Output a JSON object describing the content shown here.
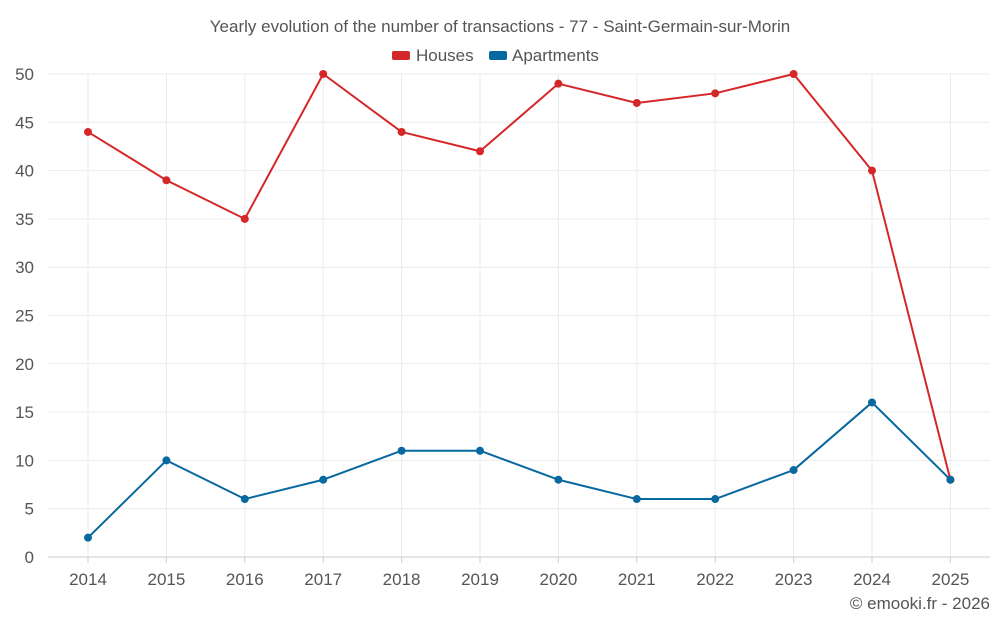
{
  "chart_data": {
    "type": "line",
    "title": "Yearly evolution of the number of transactions - 77 - Saint-Germain-sur-Morin",
    "xlabel": "",
    "ylabel": "",
    "categories": [
      "2014",
      "2015",
      "2016",
      "2017",
      "2018",
      "2019",
      "2020",
      "2021",
      "2022",
      "2023",
      "2024",
      "2025"
    ],
    "ylim": [
      0,
      50
    ],
    "yticks": [
      0,
      5,
      10,
      15,
      20,
      25,
      30,
      35,
      40,
      45,
      50
    ],
    "grid": true,
    "legend_position": "top-center",
    "series": [
      {
        "name": "Houses",
        "color": "#d62728",
        "values": [
          44,
          39,
          35,
          50,
          44,
          42,
          49,
          47,
          48,
          50,
          40,
          8
        ]
      },
      {
        "name": "Apartments",
        "color": "#0868a0",
        "values": [
          2,
          10,
          6,
          8,
          11,
          11,
          8,
          6,
          6,
          9,
          16,
          8
        ]
      }
    ]
  },
  "credit": "© emooki.fr - 2026"
}
